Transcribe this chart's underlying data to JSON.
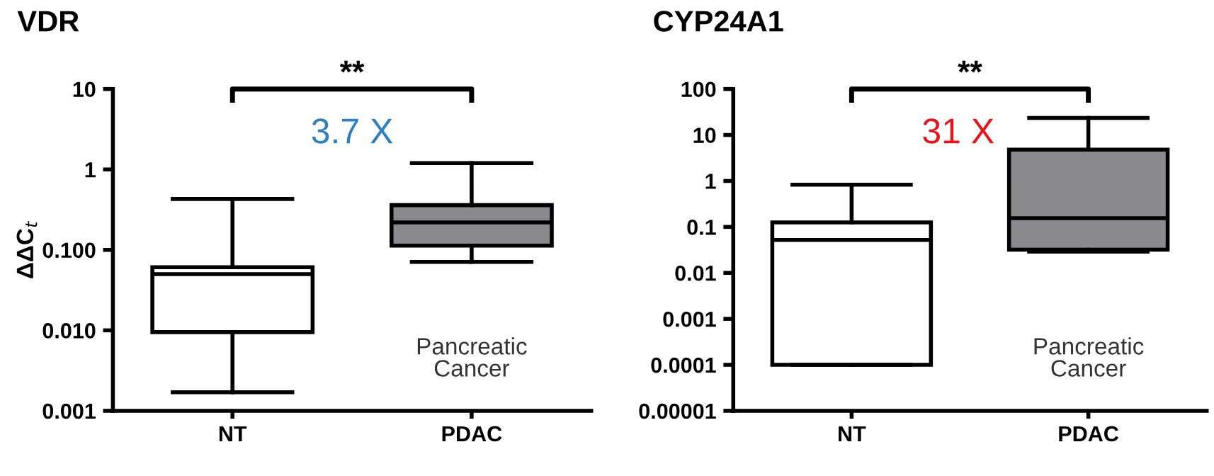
{
  "chart_data": [
    {
      "type": "box",
      "title": "VDR",
      "ylabel": "ΔΔC$_{t}$",
      "categories": [
        "NT",
        "PDAC"
      ],
      "colors": [
        "#ffffff",
        "#8a8a8c"
      ],
      "log": "y",
      "ylim": [
        0.001,
        10
      ],
      "yticks": [
        10,
        1,
        {
          "value": 0.1,
          "label": "0.100"
        },
        {
          "value": 0.01,
          "label": "0.010"
        },
        0.001
      ],
      "boxes": [
        {
          "low": 0.0017,
          "q1": 0.0095,
          "median": 0.05,
          "q3": 0.061,
          "high": 0.43
        },
        {
          "low": 0.071,
          "q1": 0.113,
          "median": 0.22,
          "q3": 0.36,
          "high": 1.2
        }
      ],
      "annotations": [
        "**",
        "3.7 X",
        "Pancreatic\nCancer"
      ]
    },
    {
      "type": "box",
      "title": "CYP24A1",
      "categories": [
        "NT",
        "PDAC"
      ],
      "colors": [
        "#ffffff",
        "#8a8a8c"
      ],
      "log": "y",
      "ylim": [
        1e-05,
        100
      ],
      "yticks": [
        100,
        10,
        1,
        0.1,
        0.01,
        0.001,
        0.0001,
        {
          "value": 1e-05,
          "label": "0.00001"
        }
      ],
      "boxes": [
        {
          "low": 0.0001,
          "q1": 0.0001,
          "median": 0.052,
          "q3": 0.125,
          "high": 0.83
        },
        {
          "low": 0.029,
          "q1": 0.032,
          "median": 0.155,
          "q3": 4.8,
          "high": 23.5
        }
      ],
      "annotations": [
        "**",
        "31 X",
        "Pancreatic\nCancer"
      ]
    }
  ]
}
